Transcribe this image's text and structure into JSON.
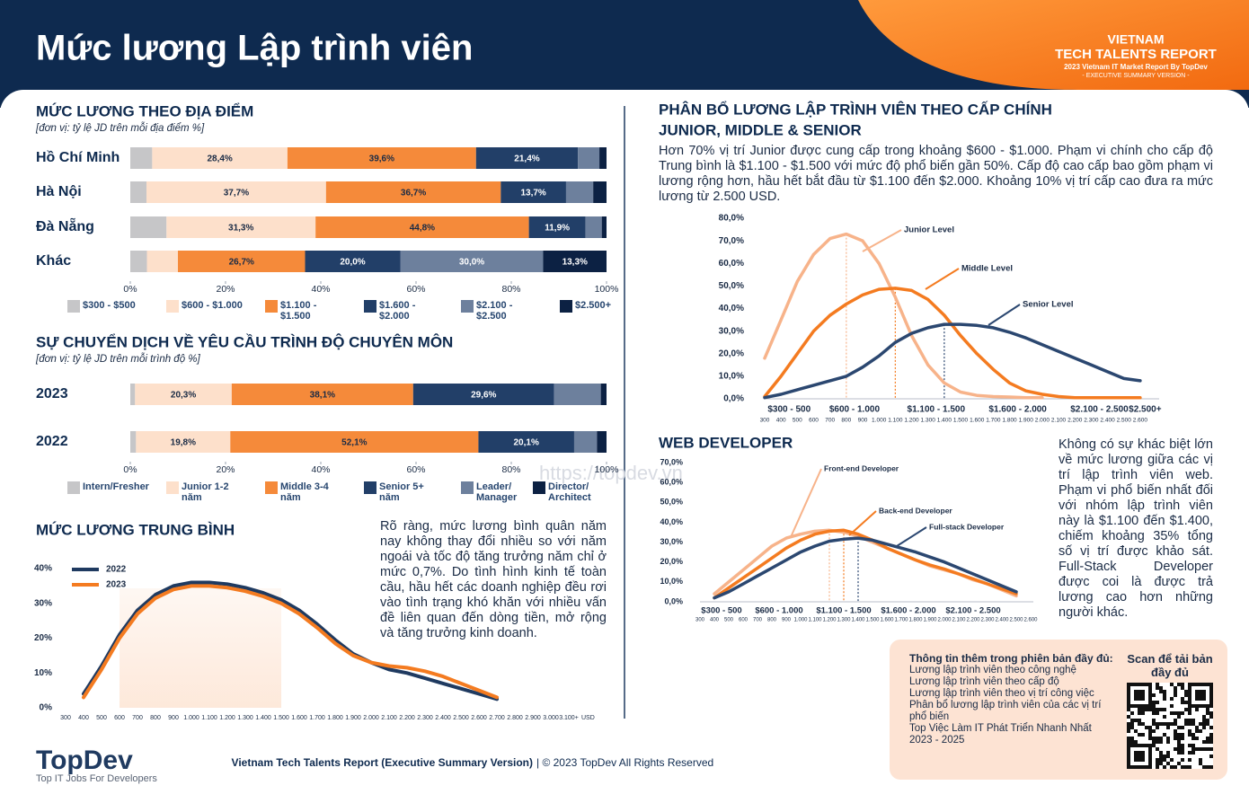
{
  "header": {
    "title": "Mức lương Lập trình viên",
    "brand_line1": "VIETNAM",
    "brand_line2": "TECH TALENTS REPORT",
    "brand_line3": "2023 Vietnam IT Market Report By TopDev",
    "brand_line4": "- EXECUTIVE SUMMARY VERSION -"
  },
  "chart_data": [
    {
      "type": "stacked-bar-horizontal",
      "title": "MỨC LƯƠNG THEO ĐỊA ĐIỂM",
      "subtitle": "[đơn vị: tỷ lệ JD trên mỗi địa điểm %]",
      "categories": [
        "Hồ Chí Minh",
        "Hà Nội",
        "Đà Nẵng",
        "Khác"
      ],
      "series": [
        {
          "name": "$300 - $500",
          "color": "#c6c6c8",
          "values": [
            4.6,
            3.4,
            7.6,
            3.5
          ],
          "value_labels": [
            null,
            null,
            null,
            null
          ]
        },
        {
          "name": "$600  - $1.000",
          "color": "#fde0cb",
          "values": [
            28.4,
            37.7,
            31.3,
            6.5
          ],
          "value_labels": [
            "28,4%",
            "37,7%",
            "31,3%",
            null
          ]
        },
        {
          "name": "$1.100 - $1.500",
          "color": "#f58a3a",
          "values": [
            39.6,
            36.7,
            44.8,
            26.7
          ],
          "value_labels": [
            "39,6%",
            "36,7%",
            "44,8%",
            "26,7%"
          ]
        },
        {
          "name": "$1.600 - $2.000",
          "color": "#223f68",
          "values": [
            21.4,
            13.7,
            11.9,
            20.0
          ],
          "value_labels": [
            "21,4%",
            "13,7%",
            "11,9%",
            "20,0%"
          ]
        },
        {
          "name": "$2.100 - $2.500",
          "color": "#6d809d",
          "values": [
            4.5,
            5.7,
            3.4,
            30.0
          ],
          "value_labels": [
            null,
            null,
            null,
            "30,0%"
          ]
        },
        {
          "name": "$2.500+",
          "color": "#0c2143",
          "values": [
            1.5,
            2.8,
            1.0,
            13.3
          ],
          "value_labels": [
            null,
            null,
            null,
            "13,3%"
          ]
        }
      ],
      "xlim": [
        0,
        100
      ],
      "xticks": [
        {
          "value": 0,
          "label": "0%"
        },
        {
          "value": 20,
          "label": "20%"
        },
        {
          "value": 40,
          "label": "40%"
        },
        {
          "value": 60,
          "label": "60%"
        },
        {
          "value": 80,
          "label": "80%"
        },
        {
          "value": 100,
          "label": "100%"
        }
      ]
    },
    {
      "type": "stacked-bar-horizontal",
      "title": "SỰ CHUYỂN DỊCH VỀ YÊU CẦU TRÌNH ĐỘ CHUYÊN MÔN",
      "subtitle": "[đơn vị: tỷ lệ JD trên mỗi trình độ %]",
      "categories": [
        "2023",
        "2022"
      ],
      "series": [
        {
          "name": "Intern/Fresher",
          "color": "#c6c6c8",
          "values": [
            1.0,
            1.2
          ],
          "value_labels": [
            null,
            null
          ]
        },
        {
          "name": "Junior 1-2 năm",
          "color": "#fde0cb",
          "values": [
            20.3,
            19.8
          ],
          "value_labels": [
            "20,3%",
            "19,8%"
          ]
        },
        {
          "name": "Middle 3-4 năm",
          "color": "#f58a3a",
          "values": [
            38.1,
            52.1
          ],
          "value_labels": [
            "38,1%",
            "52,1%"
          ]
        },
        {
          "name": "Senior 5+ năm",
          "color": "#223f68",
          "values": [
            29.6,
            20.1
          ],
          "value_labels": [
            "29,6%",
            "20,1%"
          ]
        },
        {
          "name": "Leader/ Manager",
          "color": "#6d809d",
          "values": [
            9.8,
            4.8
          ],
          "value_labels": [
            null,
            null
          ]
        },
        {
          "name": "Director/ Architect",
          "color": "#0c2143",
          "values": [
            1.2,
            2.0
          ],
          "value_labels": [
            null,
            null
          ]
        }
      ],
      "xlim": [
        0,
        100
      ],
      "xticks": [
        {
          "value": 0,
          "label": "0%"
        },
        {
          "value": 20,
          "label": "20%"
        },
        {
          "value": 40,
          "label": "40%"
        },
        {
          "value": 60,
          "label": "60%"
        },
        {
          "value": 80,
          "label": "80%"
        },
        {
          "value": 100,
          "label": "100%"
        }
      ]
    },
    {
      "type": "line",
      "title": "MỨC LƯƠNG TRUNG BÌNH",
      "x_label": "USD",
      "categories": [
        "300",
        "400",
        "500",
        "600",
        "700",
        "800",
        "900",
        "1.000",
        "1.100",
        "1.200",
        "1.300",
        "1.400",
        "1.500",
        "1.600",
        "1.700",
        "1.800",
        "1.900",
        "2.000",
        "2.100",
        "2.200",
        "2.300",
        "2.400",
        "2.500",
        "2.600",
        "2.700",
        "2.800",
        "2.900",
        "3.000",
        "3.100+"
      ],
      "series": [
        {
          "name": "2022",
          "color": "#1f3a60",
          "values": [
            null,
            4,
            12,
            21,
            28,
            32.5,
            35,
            36,
            36,
            35.5,
            34.5,
            33,
            31,
            28,
            24,
            19.5,
            15.5,
            13,
            11,
            10,
            8.5,
            7,
            5.5,
            4,
            2.5,
            null,
            null,
            null,
            null
          ]
        },
        {
          "name": "2023",
          "color": "#f47b20",
          "values": [
            null,
            3,
            11,
            20,
            27,
            31.5,
            34,
            35,
            35,
            34.5,
            33.5,
            32,
            30,
            27,
            23,
            18.5,
            15,
            13,
            12,
            11.5,
            10.5,
            9,
            7,
            5,
            3,
            null,
            null,
            null,
            null
          ]
        }
      ],
      "ylim": [
        0,
        40
      ],
      "yticks": [
        {
          "value": 0,
          "label": "0%"
        },
        {
          "value": 10,
          "label": "10%"
        },
        {
          "value": 20,
          "label": "20%"
        },
        {
          "value": 30,
          "label": "30%"
        },
        {
          "value": 40,
          "label": "40%"
        }
      ]
    },
    {
      "type": "line",
      "title_line1": "PHÂN BỔ LƯƠNG LẬP TRÌNH VIÊN THEO CẤP CHÍNH",
      "title_line2": "JUNIOR, MIDDLE & SENIOR",
      "categories": [
        "300",
        "400",
        "500",
        "600",
        "700",
        "800",
        "900",
        "1.000",
        "1.100",
        "1.200",
        "1.300",
        "1.400",
        "1.500",
        "1.600",
        "1.700",
        "1.800",
        "1.900",
        "2.000",
        "2.100",
        "2.200",
        "2.300",
        "2.400",
        "2.500",
        "2.600"
      ],
      "x_groups": [
        "$300 - 500",
        "$600 - 1.000",
        "$1.100 - 1.500",
        "$1.600 - 2.000",
        "$2.100 - 2.500",
        "$2.500+"
      ],
      "series": [
        {
          "name": "Junior Level",
          "color": "#f7b38a",
          "values": [
            18,
            35,
            52,
            64,
            71,
            73,
            70,
            60,
            45,
            28,
            15,
            7,
            3,
            1.5,
            1,
            0.8,
            0.5,
            0.5,
            null,
            null,
            null,
            null,
            null,
            null
          ]
        },
        {
          "name": "Middle Level",
          "color": "#f47b20",
          "values": [
            1,
            10,
            20,
            30,
            37,
            42,
            46,
            48.5,
            49,
            48,
            44,
            37,
            28,
            20,
            13,
            7,
            3.5,
            2,
            1,
            0.5,
            0.5,
            0.5,
            0.5,
            0.5
          ]
        },
        {
          "name": "Senior Level",
          "color": "#2b4770",
          "values": [
            0.5,
            2,
            4,
            6,
            8,
            10,
            14,
            19,
            25,
            29,
            31.5,
            33,
            33,
            32.5,
            31.5,
            29.5,
            27,
            24,
            21,
            18,
            15,
            12,
            9,
            8
          ]
        }
      ],
      "ylim": [
        0,
        80
      ],
      "yticks": [
        {
          "value": 0,
          "label": "0,0%"
        },
        {
          "value": 10,
          "label": "10,0%"
        },
        {
          "value": 20,
          "label": "20,0%"
        },
        {
          "value": 30,
          "label": "30,0%"
        },
        {
          "value": 40,
          "label": "40,0%"
        },
        {
          "value": 50,
          "label": "50,0%"
        },
        {
          "value": 60,
          "label": "60,0%"
        },
        {
          "value": 70,
          "label": "70,0%"
        },
        {
          "value": 80,
          "label": "80,0%"
        }
      ]
    },
    {
      "type": "line",
      "title": "WEB DEVELOPER",
      "categories": [
        "300",
        "400",
        "500",
        "600",
        "700",
        "800",
        "900",
        "1.000",
        "1.100",
        "1.200",
        "1.300",
        "1.400",
        "1.500",
        "1.600",
        "1.700",
        "1.800",
        "1.900",
        "2.000",
        "2.100",
        "2.200",
        "2.300",
        "2.400",
        "2.500",
        "2.600"
      ],
      "x_groups": [
        "$300 - 500",
        "$600 - 1.000",
        "$1.100 - 1.500",
        "$1.600 - 2.000",
        "$2.100 - 2.500"
      ],
      "series": [
        {
          "name": "Front-end Developer",
          "color": "#f7b38a",
          "values": [
            null,
            4,
            10,
            16,
            22,
            28,
            32,
            34,
            35.5,
            36,
            35,
            33,
            30,
            27,
            24,
            21,
            18,
            16,
            14,
            11,
            9,
            6,
            3,
            null
          ]
        },
        {
          "name": "Back-end Developer",
          "color": "#f47b20",
          "values": [
            null,
            2,
            7,
            12,
            17,
            22,
            27,
            31,
            34,
            35.5,
            36,
            34,
            31,
            27,
            24,
            21,
            18.5,
            16.5,
            14,
            11.5,
            9,
            6.5,
            4,
            null
          ]
        },
        {
          "name": "Full-stack Developer",
          "color": "#2b4770",
          "values": [
            null,
            2,
            5,
            9,
            13,
            17,
            21,
            25,
            28,
            30.5,
            31.5,
            32,
            31,
            29,
            27,
            25,
            22.5,
            20,
            17,
            14,
            11,
            8,
            5,
            null
          ]
        }
      ],
      "ylim": [
        0,
        70
      ],
      "yticks": [
        {
          "value": 0,
          "label": "0,0%"
        },
        {
          "value": 10,
          "label": "10,0%"
        },
        {
          "value": 20,
          "label": "20,0%"
        },
        {
          "value": 30,
          "label": "30,0%"
        },
        {
          "value": 40,
          "label": "40,0%"
        },
        {
          "value": 50,
          "label": "50,0%"
        },
        {
          "value": 60,
          "label": "60,0%"
        },
        {
          "value": 70,
          "label": "70,0%"
        }
      ]
    }
  ],
  "texts": {
    "average_salary": "Rõ ràng, mức lương bình quân năm nay không thay đổi nhiều so với năm ngoái và tốc độ tăng trưởng năm chỉ ở mức 0,7%. Do tình hình kinh tế toàn cầu, hầu hết các doanh nghiệp đều rơi vào tình trạng khó khăn với nhiều vấn đề liên quan đến dòng tiền, mở rộng và tăng trưởng kinh doanh.",
    "level_distribution": " Hơn 70% vị trí Junior được cung cấp trong khoảng $600 - $1.000. Phạm vi chính cho cấp độ Trung bình là $1.100 - $1.500 với mức độ phổ biến gần 50%. Cấp độ cao cấp bao gồm phạm vi lương rộng hơn, hầu hết bắt đầu từ $1.100 đến $2.000. Khoảng 10% vị trí cấp cao đưa ra mức lương từ 2.500 USD.",
    "web_developer": "Không có sự khác biệt lớn về mức lương giữa các vị trí lập trình viên web. Phạm vi phổ biến nhất đối với nhóm lập trình viên này là $1.100 đến $1.400, chiếm khoảng 35% tổng số vị trí được khảo sát. Full-Stack Developer được coi là được trả lương cao hơn những người khác.",
    "watermark": "https://topdev.vn"
  },
  "info_box": {
    "heading": "Thông tin thêm trong phiên bản đầy đủ:",
    "items": [
      "Lương lập trình viên theo công nghệ",
      "Lương lập trình viên theo cấp độ",
      "Lương lập trình viên theo vị trí công việc",
      "Phân bổ lương lập trình viên của các vị trí phổ biến",
      "Top Việc Làm IT Phát Triển Nhanh Nhất 2023 - 2025"
    ],
    "scan": "Scan để tải bản đầy đủ"
  },
  "footer": {
    "logo": "TopDev",
    "tagline": "Top IT Jobs For Developers",
    "report": "Vietnam Tech Talents Report  (Executive Summary Version)",
    "copyright": "| © 2023 TopDev All Rights Reserved"
  }
}
